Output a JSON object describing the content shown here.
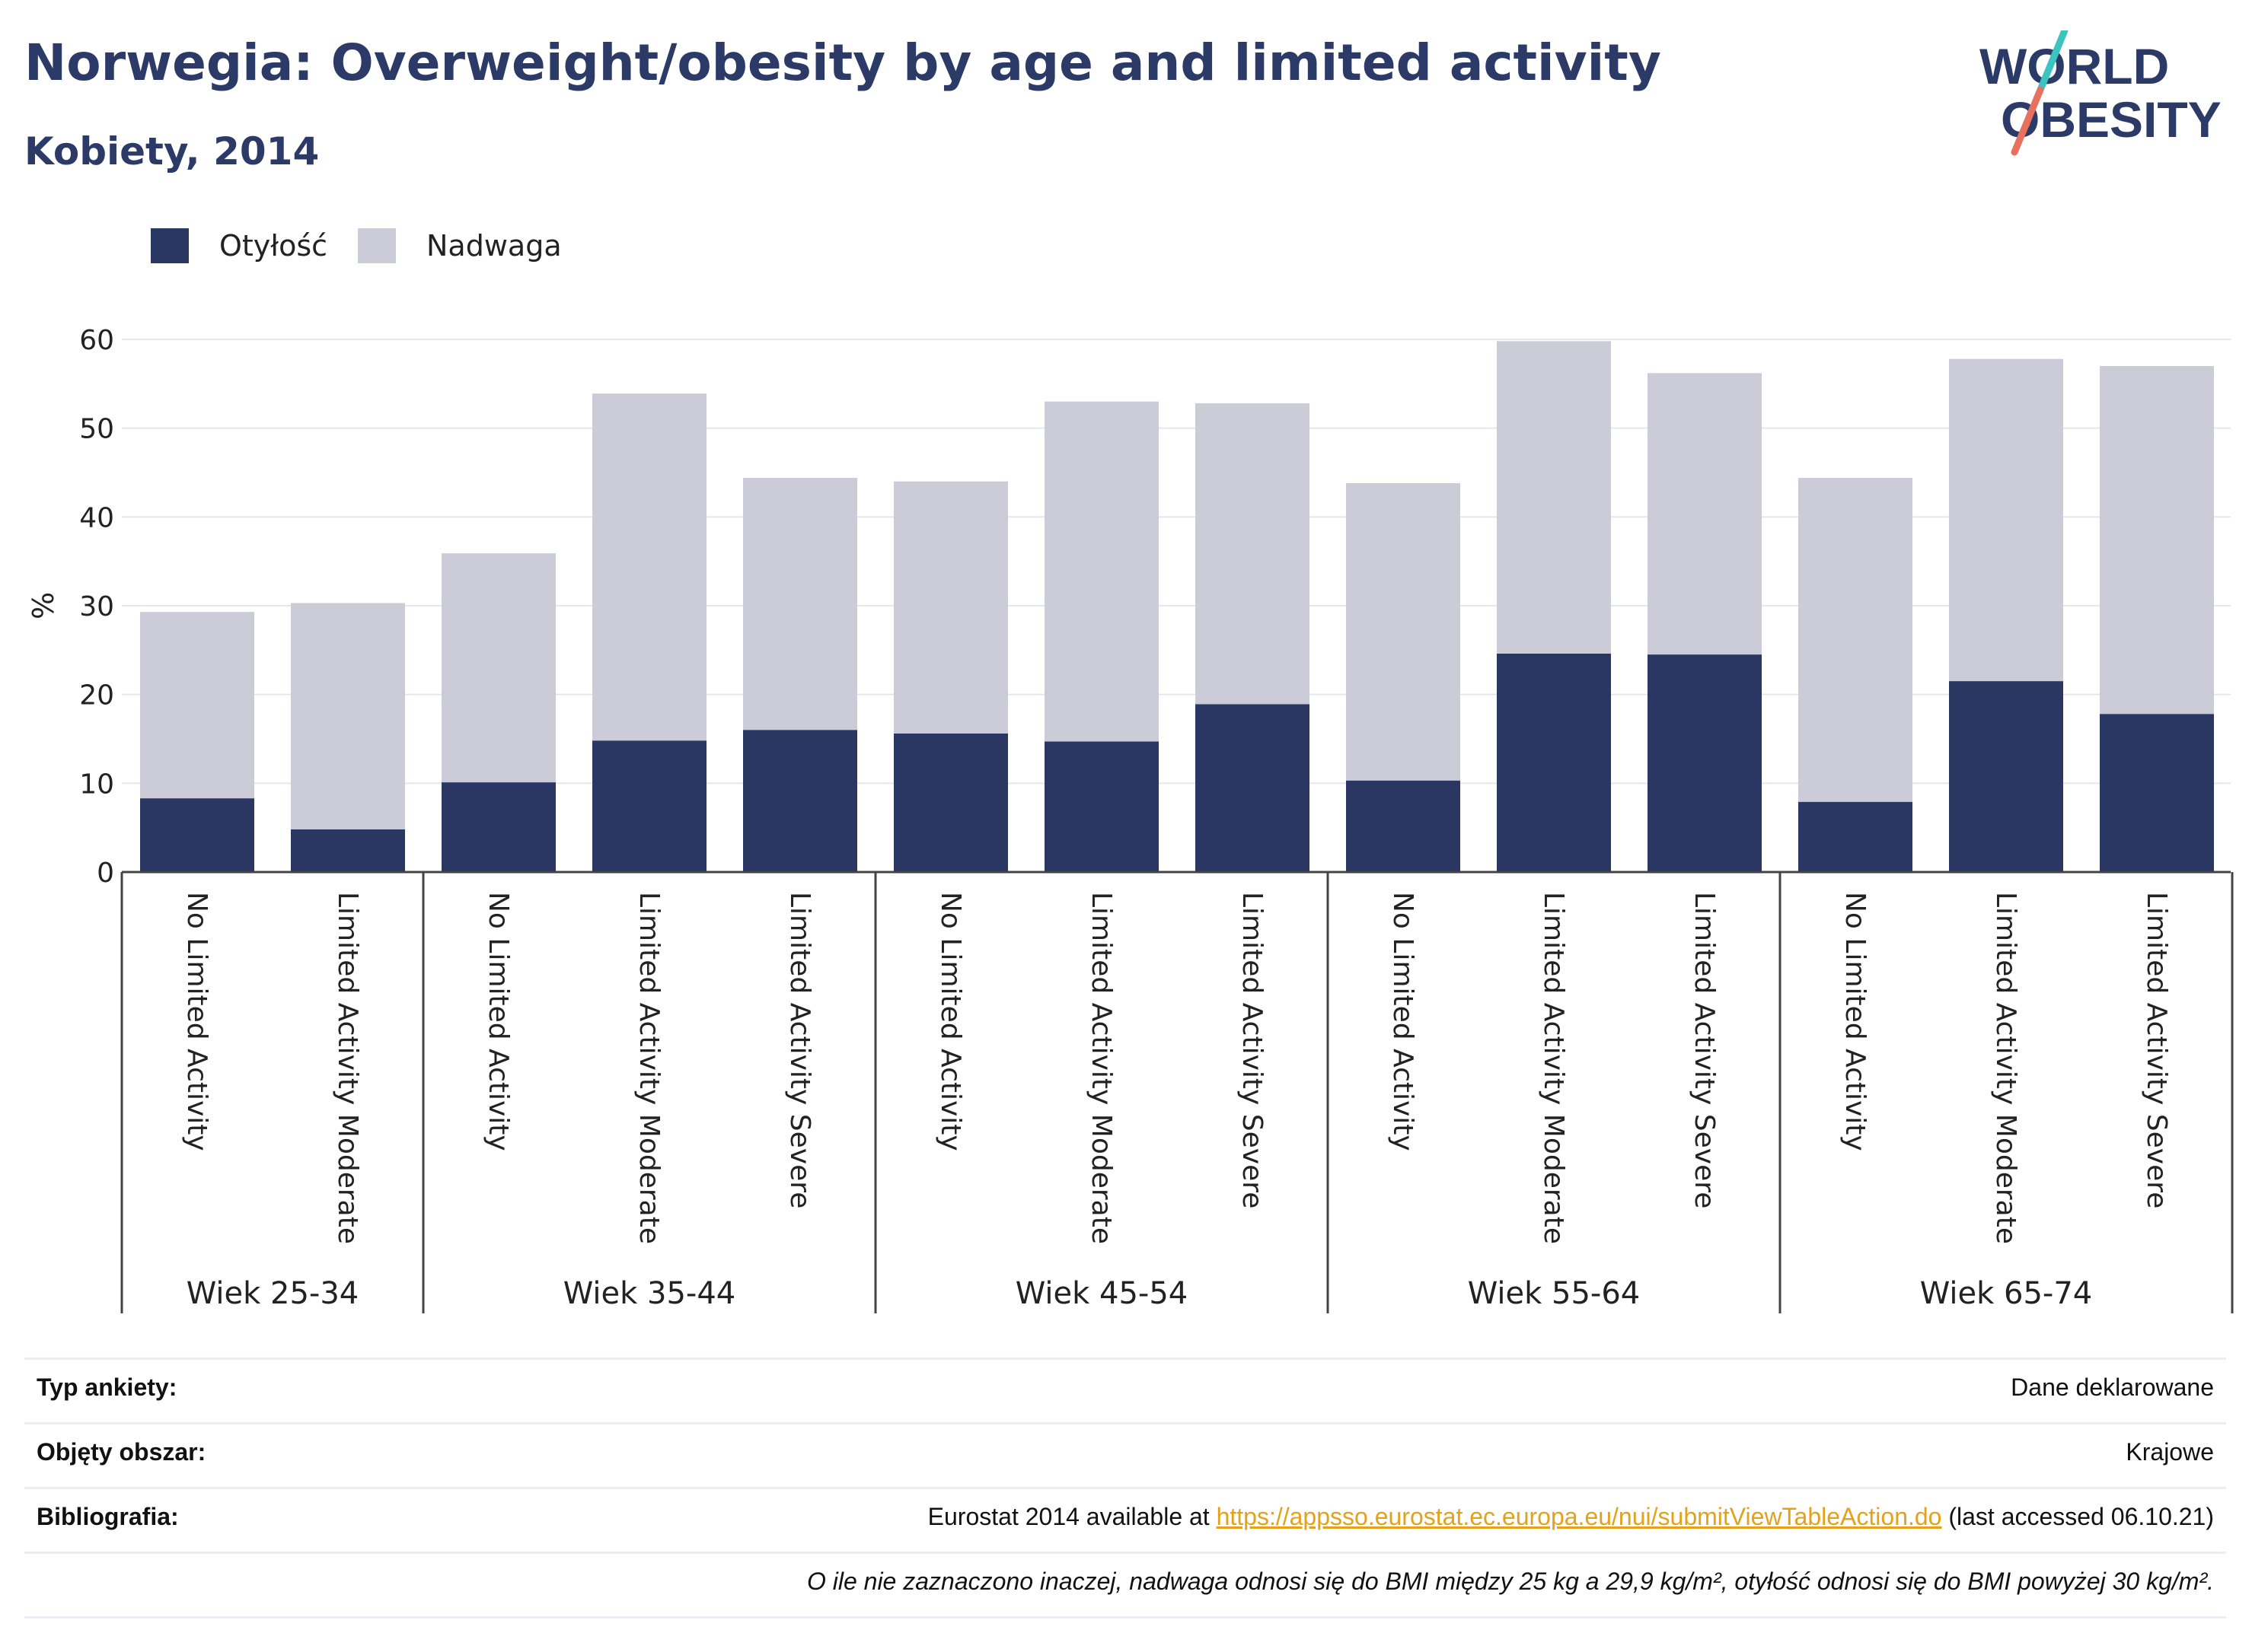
{
  "header": {
    "title": "Norwegia: Overweight/obesity by age and limited activity",
    "subtitle": "Kobiety, 2014"
  },
  "logo": {
    "line1": "WORLD",
    "line2": "OBESITY",
    "colors": {
      "text": "#2b3a67",
      "slash_top": "#3cc5c0",
      "slash_bottom": "#e8705f"
    }
  },
  "legend": {
    "items": [
      {
        "label": "Otyłość",
        "color": "#2b3763"
      },
      {
        "label": "Nadwaga",
        "color": "#cbccd8"
      }
    ]
  },
  "chart_data": {
    "type": "bar",
    "stacked": true,
    "ylabel": "%",
    "ylim": [
      0,
      60
    ],
    "yticks": [
      0,
      10,
      20,
      30,
      40,
      50,
      60
    ],
    "grid": true,
    "legend_position": "top-left",
    "groups": [
      {
        "label": "Wiek 25-34",
        "categories": [
          "No Limited Activity",
          "Limited Activity Moderate"
        ]
      },
      {
        "label": "Wiek 35-44",
        "categories": [
          "No Limited Activity",
          "Limited Activity Moderate",
          "Limited Activity Severe"
        ]
      },
      {
        "label": "Wiek 45-54",
        "categories": [
          "No Limited Activity",
          "Limited Activity Moderate",
          "Limited Activity Severe"
        ]
      },
      {
        "label": "Wiek 55-64",
        "categories": [
          "No Limited Activity",
          "Limited Activity Moderate",
          "Limited Activity Severe"
        ]
      },
      {
        "label": "Wiek 65-74",
        "categories": [
          "No Limited Activity",
          "Limited Activity Moderate",
          "Limited Activity Severe"
        ]
      }
    ],
    "series": [
      {
        "name": "Otyłość",
        "color": "#2b3763",
        "values": [
          8.3,
          4.8,
          10.1,
          14.8,
          16.0,
          15.6,
          14.7,
          18.9,
          10.3,
          24.6,
          24.5,
          7.9,
          21.5,
          17.8
        ]
      },
      {
        "name": "Nadwaga",
        "color": "#cbccd8",
        "values": [
          21.0,
          25.5,
          25.8,
          39.1,
          28.4,
          28.4,
          38.3,
          33.9,
          33.5,
          35.2,
          31.7,
          36.5,
          36.3,
          39.2
        ]
      }
    ]
  },
  "info": {
    "rows": [
      {
        "label": "Typ ankiety:",
        "value": "Dane deklarowane"
      },
      {
        "label": "Objęty obszar:",
        "value": "Krajowe"
      },
      {
        "label": "Bibliografia:",
        "value_prefix": "Eurostat 2014 available at ",
        "link": "https://appsso.eurostat.ec.europa.eu/nui/submitViewTableAction.do",
        "value_suffix": " (last accessed 06.10.21)"
      }
    ],
    "note": "O ile nie zaznaczono inaczej, nadwaga odnosi się do BMI między 25 kg a 29,9 kg/m², otyłość odnosi się do BMI powyżej 30 kg/m²."
  }
}
